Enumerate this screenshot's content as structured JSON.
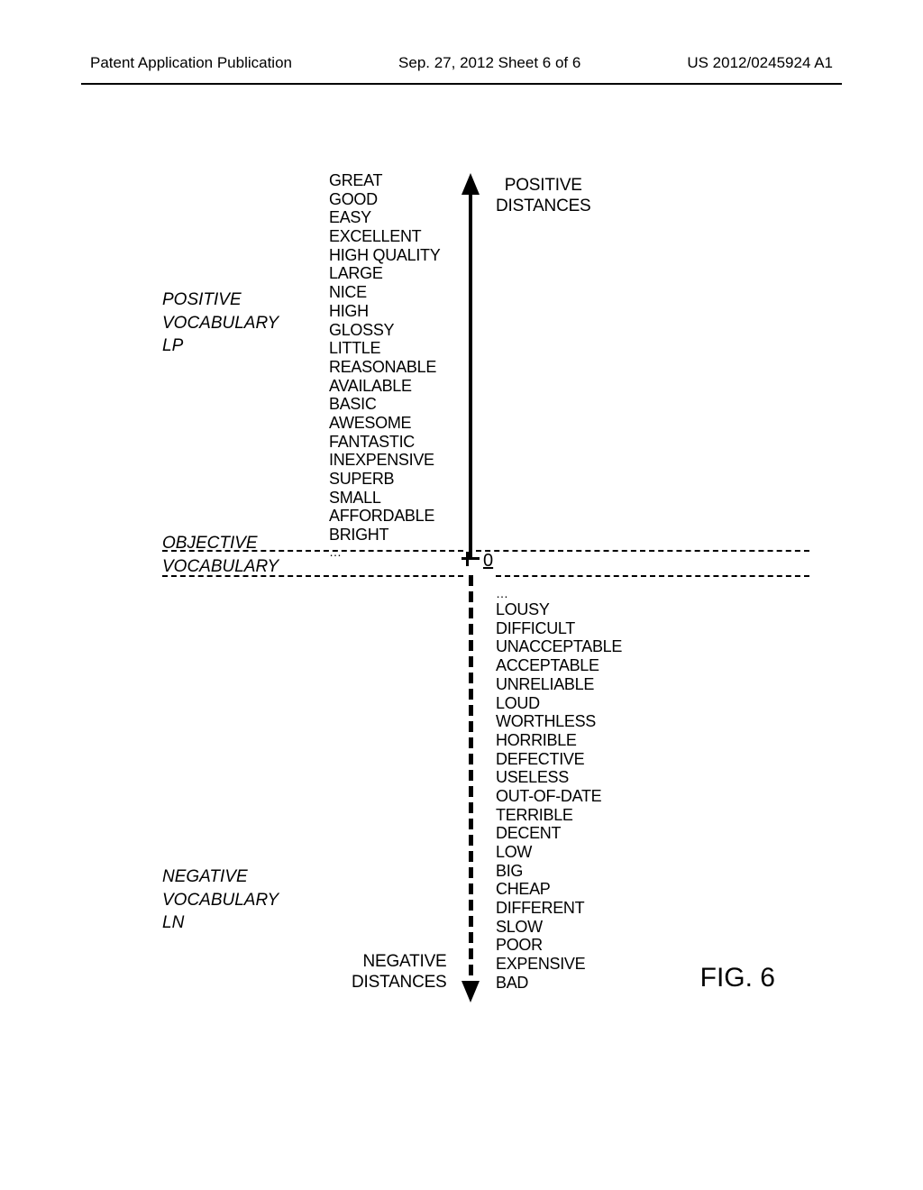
{
  "header": {
    "left": "Patent Application Publication",
    "center": "Sep. 27, 2012  Sheet 6 of 6",
    "right": "US 2012/0245924 A1"
  },
  "figure": {
    "categories": {
      "positive": {
        "line1": "POSITIVE",
        "line2": "VOCABULARY",
        "line3": "LP"
      },
      "objective": {
        "line1": "OBJECTIVE",
        "line2": "VOCABULARY"
      },
      "negative": {
        "line1": "NEGATIVE",
        "line2": "VOCABULARY",
        "line3": "LN"
      }
    },
    "positive_words": [
      "GREAT",
      "GOOD",
      "EASY",
      "EXCELLENT",
      "HIGH QUALITY",
      "LARGE",
      "NICE",
      "HIGH",
      "GLOSSY",
      "LITTLE",
      "REASONABLE",
      "AVAILABLE",
      "BASIC",
      "AWESOME",
      "FANTASTIC",
      "INEXPENSIVE",
      "SUPERB",
      "SMALL",
      "AFFORDABLE",
      "BRIGHT"
    ],
    "negative_words": [
      "LOUSY",
      "DIFFICULT",
      "UNACCEPTABLE",
      "ACCEPTABLE",
      "UNRELIABLE",
      "LOUD",
      "WORTHLESS",
      "HORRIBLE",
      "DEFECTIVE",
      "USELESS",
      "OUT-OF-DATE",
      "TERRIBLE",
      "DECENT",
      "LOW",
      "BIG",
      "CHEAP",
      "DIFFERENT",
      "SLOW",
      "POOR",
      "EXPENSIVE",
      "BAD"
    ],
    "axis": {
      "zero_label": "0",
      "positive_arrow_label_line1": "POSITIVE",
      "positive_arrow_label_line2": "DISTANCES",
      "negative_arrow_label_line1": "NEGATIVE",
      "negative_arrow_label_line2": "DISTANCES"
    },
    "fig_label": "FIG. 6",
    "colors": {
      "text": "#000000",
      "bg": "#ffffff",
      "line": "#000000"
    },
    "font_sizes": {
      "header": 17,
      "cat_label": 19,
      "word": 18,
      "arrow_label": 19,
      "fig_label": 30,
      "zero": 20
    }
  }
}
